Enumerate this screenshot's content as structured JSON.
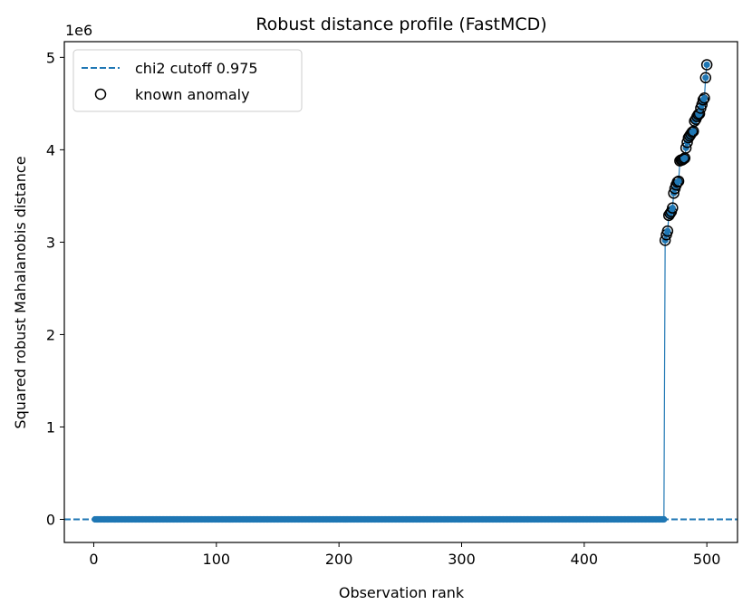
{
  "chart_data": {
    "type": "line",
    "title": "Robust distance profile (FastMCD)",
    "xlabel": "Observation rank",
    "ylabel": "Squared robust Mahalanobis distance",
    "y_offset_label": "1e6",
    "xlim": [
      -24,
      525
    ],
    "ylim": [
      -250000,
      5170000
    ],
    "xticks": [
      0,
      100,
      200,
      300,
      400,
      500
    ],
    "yticks": [
      0,
      1,
      2,
      3,
      4,
      5
    ],
    "grid": false,
    "legend_position": "top-left",
    "cutoff": {
      "label": "chi2 cutoff 0.975",
      "value": 0,
      "style": "dashed"
    },
    "anomaly_marker_label": "known anomaly",
    "series": [
      {
        "kind": "profile",
        "x_start": 1,
        "x_end": 466,
        "value": 0
      },
      {
        "kind": "anomalies",
        "x": [
          466,
          467,
          468,
          469,
          470,
          471,
          472,
          473,
          474,
          475,
          476,
          477,
          478,
          479,
          480,
          481,
          482,
          483,
          484,
          485,
          486,
          487,
          488,
          489,
          490,
          491,
          492,
          493,
          494,
          495,
          496,
          497,
          498,
          499,
          500
        ],
        "values": [
          3020000,
          3080000,
          3120000,
          3290000,
          3310000,
          3330000,
          3370000,
          3530000,
          3580000,
          3620000,
          3650000,
          3660000,
          3880000,
          3890000,
          3890000,
          3900000,
          3910000,
          4020000,
          4080000,
          4130000,
          4150000,
          4170000,
          4190000,
          4200000,
          4310000,
          4330000,
          4360000,
          4380000,
          4390000,
          4450000,
          4490000,
          4540000,
          4560000,
          4780000,
          4920000
        ]
      }
    ]
  },
  "colors": {
    "series": "#1f77b4",
    "marker_edge": "#000000",
    "axis": "#000000"
  }
}
